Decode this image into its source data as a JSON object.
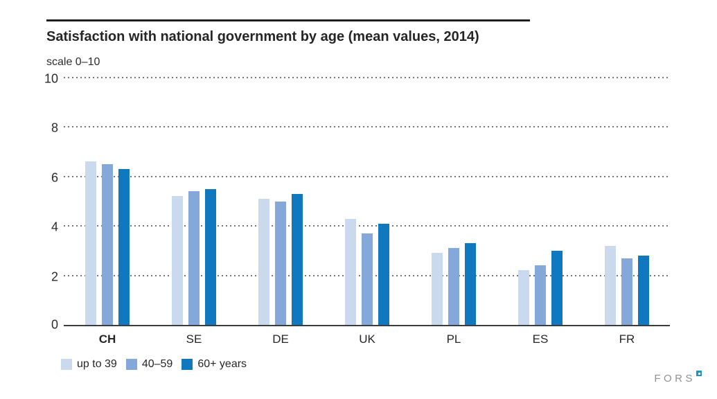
{
  "chart_data": {
    "type": "bar",
    "title": "Satisfaction with national government by age (mean values, 2014)",
    "scale_note": "scale 0–10",
    "xlabel": "",
    "ylabel": "scale 0–10",
    "categories": [
      "CH",
      "SE",
      "DE",
      "UK",
      "PL",
      "ES",
      "FR"
    ],
    "emphasized_category": "CH",
    "series": [
      {
        "name": "up to 39",
        "color": "#cbd9ef",
        "values": [
          6.6,
          5.2,
          5.1,
          4.3,
          2.9,
          2.2,
          3.2
        ]
      },
      {
        "name": "40–59",
        "color": "#84a8da",
        "values": [
          6.5,
          5.4,
          5.0,
          3.7,
          3.1,
          2.4,
          2.7
        ]
      },
      {
        "name": "60+ years",
        "color": "#1078be",
        "values": [
          6.3,
          5.5,
          5.3,
          4.1,
          3.3,
          3.0,
          2.8
        ]
      }
    ],
    "ylim": [
      0,
      10
    ],
    "yticks": [
      0,
      2,
      4,
      6,
      8,
      10
    ],
    "grid": "horizontal-dotted",
    "legend_position": "bottom-left"
  },
  "footer": {
    "logo_text": "FORS"
  }
}
